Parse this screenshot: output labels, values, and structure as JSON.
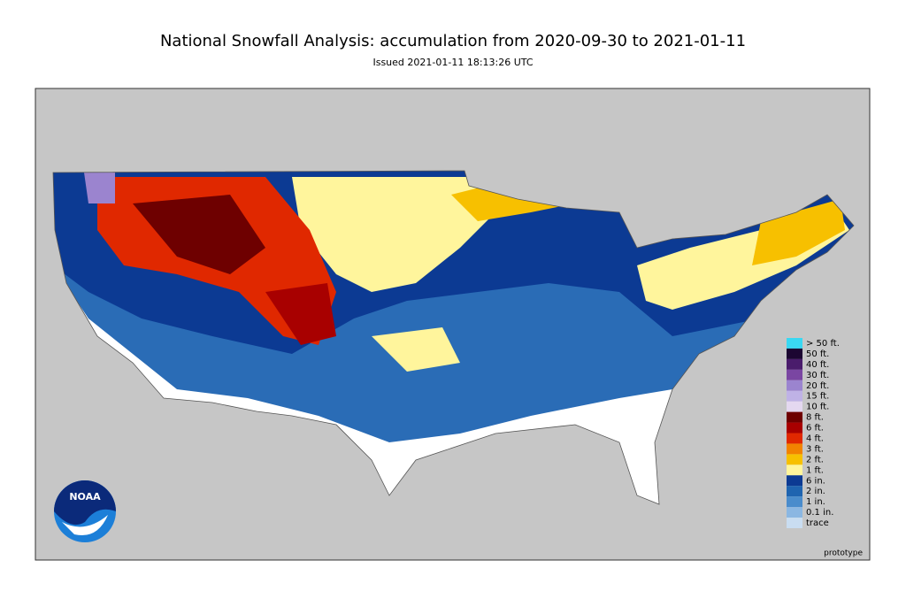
{
  "title": "National Snowfall Analysis: accumulation from 2020-09-30 to 2021-01-11",
  "subtitle": "Issued 2021-01-11 18:13:26 UTC",
  "logo": "NOAA",
  "footnote": "prototype",
  "legend": [
    {
      "label": "> 50 ft.",
      "color": "#3ad8f2"
    },
    {
      "label": "50 ft.",
      "color": "#1c0632"
    },
    {
      "label": "40 ft.",
      "color": "#4a1c6c"
    },
    {
      "label": "30 ft.",
      "color": "#7a46a2"
    },
    {
      "label": "20 ft.",
      "color": "#9b84cf"
    },
    {
      "label": "15 ft.",
      "color": "#bfb2e6"
    },
    {
      "label": "10 ft.",
      "color": "#e4d8f0"
    },
    {
      "label": "8 ft.",
      "color": "#6e0000"
    },
    {
      "label": "6 ft.",
      "color": "#a80000"
    },
    {
      "label": "4 ft.",
      "color": "#e02800"
    },
    {
      "label": "3 ft.",
      "color": "#f28300"
    },
    {
      "label": "2 ft.",
      "color": "#f7c000"
    },
    {
      "label": "1 ft.",
      "color": "#fff59c"
    },
    {
      "label": "6 in.",
      "color": "#0c3a93"
    },
    {
      "label": "2 in.",
      "color": "#1f64b0"
    },
    {
      "label": "1 in.",
      "color": "#4a8ccc"
    },
    {
      "label": "0.1 in.",
      "color": "#8bb7e2"
    },
    {
      "label": "trace",
      "color": "#c9ddf1"
    }
  ]
}
